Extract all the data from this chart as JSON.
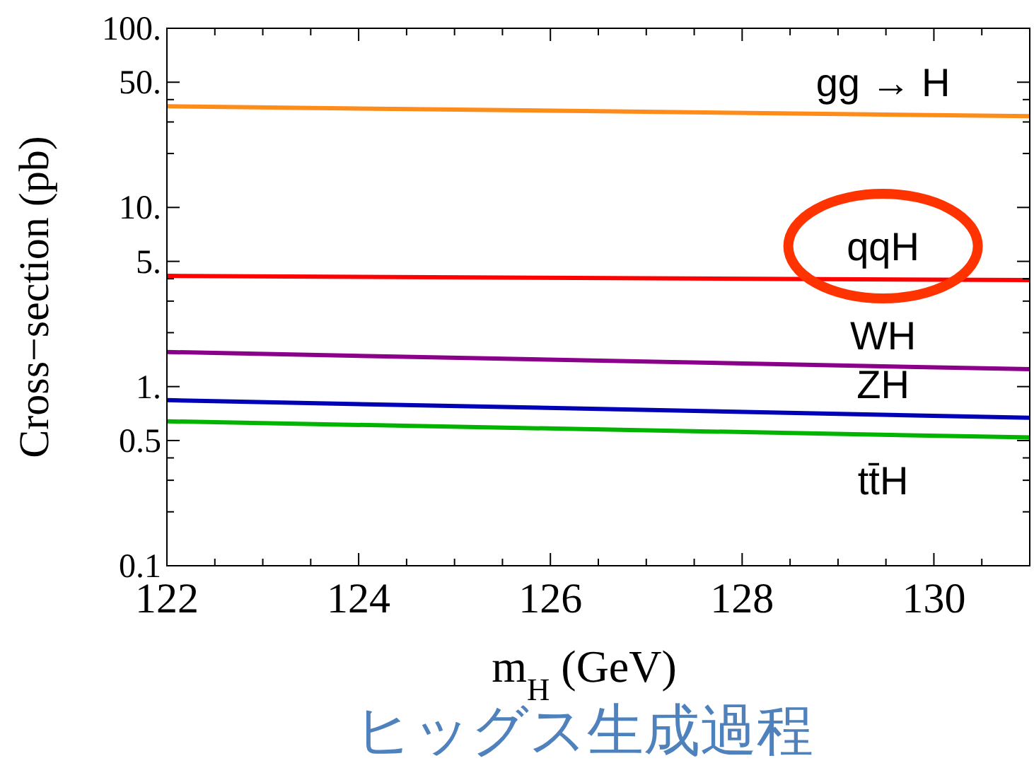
{
  "chart_data": {
    "type": "line",
    "title": "ヒッグス生成過程",
    "xlabel": "m$_{H}$ (GeV)",
    "ylabel": "Cross−section (pb)",
    "x": [
      122,
      131
    ],
    "series": [
      {
        "name": "gg → H",
        "color": "#ff8c1a",
        "values": [
          36.7,
          32.3
        ]
      },
      {
        "name": "qqH",
        "color": "#ff0000",
        "values": [
          4.15,
          3.93
        ]
      },
      {
        "name": "WH",
        "color": "#8b008b",
        "values": [
          1.56,
          1.25
        ]
      },
      {
        "name": "ZH",
        "color": "#0000b4",
        "values": [
          0.84,
          0.67
        ]
      },
      {
        "name": "tt̄H",
        "color": "#00b400",
        "values": [
          0.64,
          0.52
        ]
      }
    ],
    "log": "y",
    "xlim": [
      122,
      131
    ],
    "ylim": [
      0.1,
      100
    ],
    "xticks": [
      122,
      {
        "value": 122.5,
        "label": null
      },
      {
        "value": 123,
        "label": null
      },
      {
        "value": 123.5,
        "label": null
      },
      124,
      {
        "value": 124.5,
        "label": null
      },
      {
        "value": 125,
        "label": null
      },
      {
        "value": 125.5,
        "label": null
      },
      126,
      {
        "value": 126.5,
        "label": null
      },
      {
        "value": 127,
        "label": null
      },
      {
        "value": 127.5,
        "label": null
      },
      128,
      {
        "value": 128.5,
        "label": null
      },
      {
        "value": 129,
        "label": null
      },
      {
        "value": 129.5,
        "label": null
      },
      130,
      {
        "value": 130.5,
        "label": null
      }
    ],
    "yticks": [
      {
        "value": 0.1,
        "label": "0.1"
      },
      {
        "value": 0.2,
        "label": null
      },
      {
        "value": 0.3,
        "label": null
      },
      {
        "value": 0.4,
        "label": null
      },
      {
        "value": 0.5,
        "label": "0.5"
      },
      {
        "value": 1,
        "label": "1."
      },
      {
        "value": 2,
        "label": null
      },
      {
        "value": 3,
        "label": null
      },
      {
        "value": 4,
        "label": null
      },
      {
        "value": 5,
        "label": "5."
      },
      {
        "value": 10,
        "label": "10."
      },
      {
        "value": 20,
        "label": null
      },
      {
        "value": 30,
        "label": null
      },
      {
        "value": 40,
        "label": null
      },
      {
        "value": 50,
        "label": "50."
      },
      {
        "value": 100,
        "label": "100."
      }
    ],
    "grid": false
  }
}
